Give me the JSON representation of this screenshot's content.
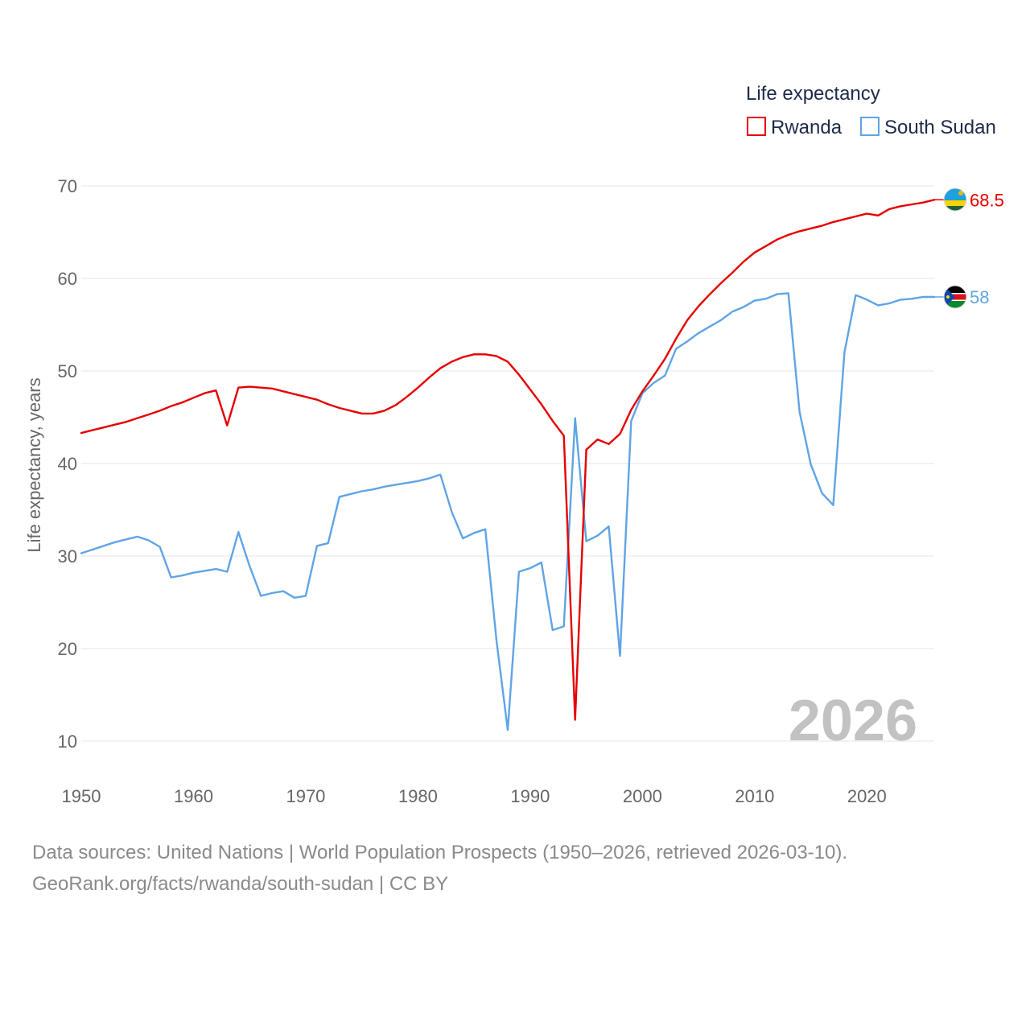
{
  "chart_data": {
    "type": "line",
    "legend_title": "Life expectancy",
    "ylabel": "Life expectancy, years",
    "xlabel": "",
    "xlim": [
      1950,
      2026
    ],
    "ylim": [
      10,
      70
    ],
    "x_ticks": [
      1950,
      1960,
      1970,
      1980,
      1990,
      2000,
      2010,
      2020
    ],
    "y_ticks": [
      10,
      20,
      30,
      40,
      50,
      60,
      70
    ],
    "grid": "horizontal",
    "legend_position": "top-right",
    "year_watermark": "2026",
    "series": [
      {
        "name": "Rwanda",
        "color": "#e60000",
        "end_label": "68.5",
        "flag": "rwanda-flag",
        "x": [
          1950,
          1951,
          1952,
          1953,
          1954,
          1955,
          1956,
          1957,
          1958,
          1959,
          1960,
          1961,
          1962,
          1963,
          1964,
          1965,
          1966,
          1967,
          1968,
          1969,
          1970,
          1971,
          1972,
          1973,
          1974,
          1975,
          1976,
          1977,
          1978,
          1979,
          1980,
          1981,
          1982,
          1983,
          1984,
          1985,
          1986,
          1987,
          1988,
          1989,
          1990,
          1991,
          1992,
          1993,
          1994,
          1995,
          1996,
          1997,
          1998,
          1999,
          2000,
          2001,
          2002,
          2003,
          2004,
          2005,
          2006,
          2007,
          2008,
          2009,
          2010,
          2011,
          2012,
          2013,
          2014,
          2015,
          2016,
          2017,
          2018,
          2019,
          2020,
          2021,
          2022,
          2023,
          2024,
          2025,
          2026
        ],
        "values": [
          43.3,
          43.6,
          43.9,
          44.2,
          44.5,
          44.9,
          45.3,
          45.7,
          46.2,
          46.6,
          47.1,
          47.6,
          47.9,
          44.1,
          48.2,
          48.3,
          48.2,
          48.1,
          47.8,
          47.5,
          47.2,
          46.9,
          46.4,
          46.0,
          45.7,
          45.4,
          45.4,
          45.7,
          46.3,
          47.2,
          48.2,
          49.3,
          50.3,
          51.0,
          51.5,
          51.8,
          51.8,
          51.6,
          51.0,
          49.6,
          48.0,
          46.4,
          44.6,
          43.0,
          12.3,
          41.5,
          42.6,
          42.1,
          43.2,
          45.8,
          47.8,
          49.5,
          51.3,
          53.5,
          55.5,
          57.0,
          58.3,
          59.5,
          60.6,
          61.8,
          62.8,
          63.5,
          64.2,
          64.7,
          65.1,
          65.4,
          65.7,
          66.1,
          66.4,
          66.7,
          67.0,
          66.8,
          67.5,
          67.8,
          68.0,
          68.2,
          68.5
        ]
      },
      {
        "name": "South Sudan",
        "color": "#5fa4e6",
        "end_label": "58",
        "flag": "south-sudan-flag",
        "x": [
          1950,
          1951,
          1952,
          1953,
          1954,
          1955,
          1956,
          1957,
          1958,
          1959,
          1960,
          1961,
          1962,
          1963,
          1964,
          1965,
          1966,
          1967,
          1968,
          1969,
          1970,
          1971,
          1972,
          1973,
          1974,
          1975,
          1976,
          1977,
          1978,
          1979,
          1980,
          1981,
          1982,
          1983,
          1984,
          1985,
          1986,
          1987,
          1988,
          1989,
          1990,
          1991,
          1992,
          1993,
          1994,
          1995,
          1996,
          1997,
          1998,
          1999,
          2000,
          2001,
          2002,
          2003,
          2004,
          2005,
          2006,
          2007,
          2008,
          2009,
          2010,
          2011,
          2012,
          2013,
          2014,
          2015,
          2016,
          2017,
          2018,
          2019,
          2020,
          2021,
          2022,
          2023,
          2024,
          2025,
          2026
        ],
        "values": [
          30.3,
          30.7,
          31.1,
          31.5,
          31.8,
          32.1,
          31.7,
          31.0,
          27.7,
          27.9,
          28.2,
          28.4,
          28.6,
          28.3,
          32.6,
          28.9,
          25.7,
          26.0,
          26.2,
          25.5,
          25.7,
          31.1,
          31.4,
          36.4,
          36.7,
          37.0,
          37.2,
          37.5,
          37.7,
          37.9,
          38.1,
          38.4,
          38.8,
          34.8,
          31.9,
          32.5,
          32.9,
          20.8,
          11.2,
          28.3,
          28.7,
          29.3,
          22.0,
          22.4,
          44.9,
          31.6,
          32.2,
          33.2,
          19.2,
          44.6,
          47.6,
          48.7,
          49.5,
          52.4,
          53.2,
          54.1,
          54.8,
          55.5,
          56.4,
          56.9,
          57.6,
          57.8,
          58.3,
          58.4,
          45.6,
          39.9,
          36.8,
          35.5,
          52.0,
          58.2,
          57.7,
          57.1,
          57.3,
          57.7,
          57.8,
          58.0,
          58.0
        ]
      }
    ]
  },
  "footer": {
    "source": "Data sources: United Nations | World Population Prospects (1950–2026, retrieved 2026-03-10).",
    "credit": "GeoRank.org/facts/rwanda/south-sudan | CC BY"
  }
}
